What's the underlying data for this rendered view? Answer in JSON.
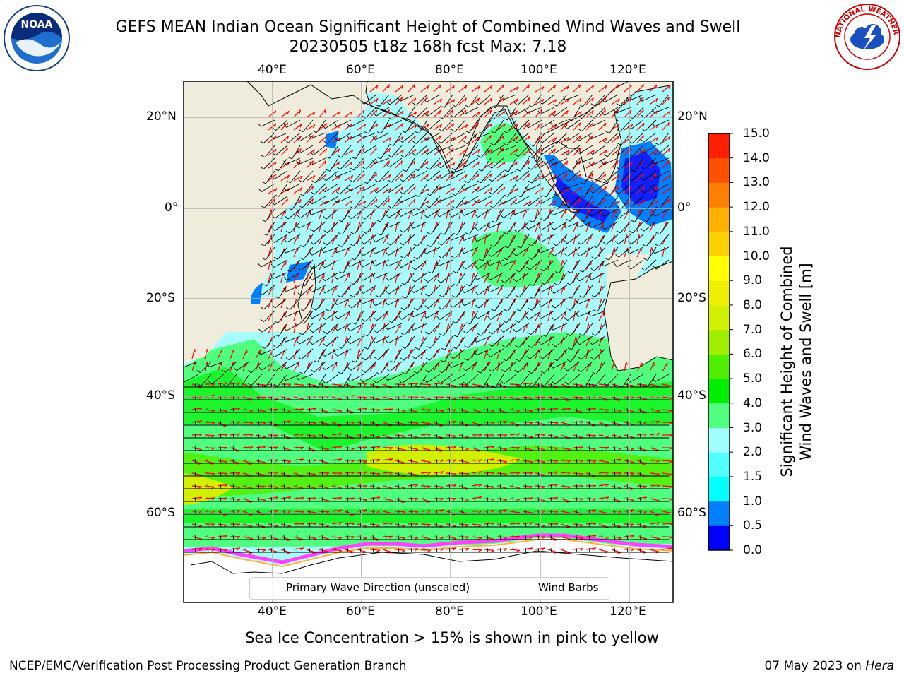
{
  "header": {
    "title_line1": "GEFS MEAN Indian Ocean Significant Height of Combined Wind Waves and Swell",
    "title_line2": "20230505 t18z 168h fcst   Max: 7.18"
  },
  "logos": {
    "left": {
      "text": "NOAA",
      "icon": "noaa-logo"
    },
    "right": {
      "text": "NATIONAL WEATHER SERVICE",
      "icon": "nws-logo"
    }
  },
  "map": {
    "lon_labels": [
      "40°E",
      "60°E",
      "80°E",
      "100°E",
      "120°E"
    ],
    "lat_labels": [
      "20°N",
      "0°",
      "20°S",
      "40°S",
      "60°S"
    ],
    "extent": {
      "lon_min": 20,
      "lon_max": 130,
      "lat_min": -75,
      "lat_max": 26
    },
    "colors": {
      "land": "#efecdc",
      "ice_free_ocean": "#9ef9f9",
      "grid": "#b0b0b0"
    }
  },
  "colorbar": {
    "label_line1": "Significant Height of Combined",
    "label_line2": "Wind Waves and Swell [m]",
    "ticks": [
      "15.0",
      "14.0",
      "13.0",
      "12.0",
      "11.0",
      "10.0",
      "9.0",
      "8.0",
      "7.0",
      "6.0",
      "5.0",
      "4.0",
      "3.0",
      "2.0",
      "1.5",
      "1.0",
      "0.5",
      "0.0"
    ],
    "bins_bottom_to_top": [
      "#0000ff",
      "#0080ff",
      "#00ffff",
      "#50ffff",
      "#a0ffff",
      "#50ff80",
      "#00ee00",
      "#50ee00",
      "#a0ee00",
      "#d0f000",
      "#eef000",
      "#ffff00",
      "#ffd000",
      "#ffb000",
      "#ff8000",
      "#ff5000",
      "#ff2000"
    ]
  },
  "legend": {
    "wave_label": "Primary Wave Direction (unscaled)",
    "barb_label": "Wind Barbs",
    "wave_color": "#ff0000",
    "barb_color": "#000000"
  },
  "note": "Sea Ice Concentration > 15% is shown in pink to yellow",
  "footer": {
    "left": "NCEP/EMC/Verification Post Processing Product Generation Branch",
    "right_date": "07 May 2023 on",
    "right_host": "Hera"
  }
}
